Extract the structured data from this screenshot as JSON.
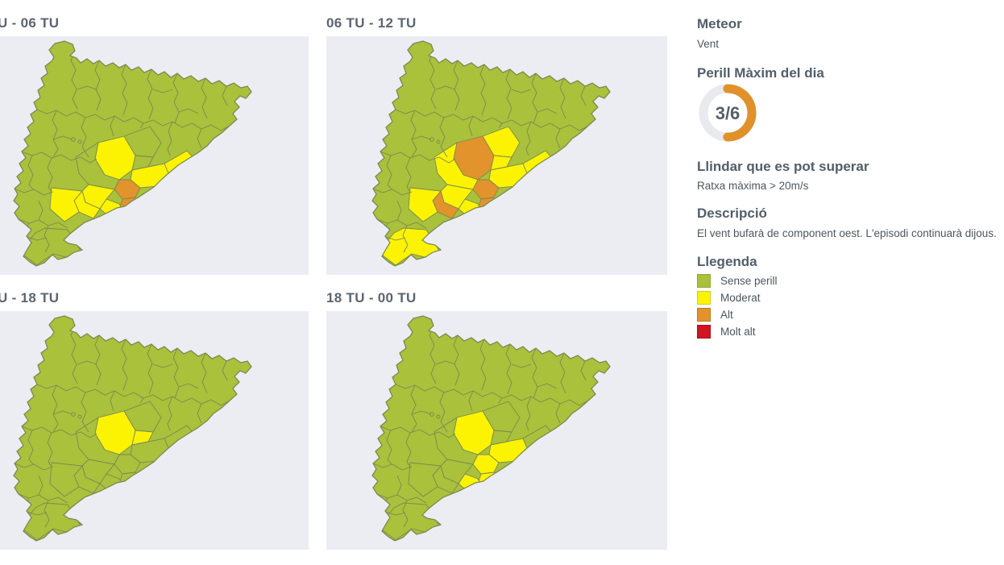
{
  "colors": {
    "sense_perill": "#a9c13b",
    "moderat": "#fcf303",
    "alt": "#e2932c",
    "molt_alt": "#d01523",
    "map_border": "#7c8852",
    "panel_bg": "#ebedf2",
    "gauge_track": "#e9eaed",
    "gauge_arc": "#e0912a"
  },
  "maps": {
    "panels": [
      {
        "title": "U - 06 TU",
        "moderat": [
          "bages",
          "vallesor",
          "maresme",
          "altpenedes",
          "garraf",
          "baixpenedes",
          "camp"
        ],
        "alt": [
          "vallesocc",
          "baixllobregat"
        ]
      },
      {
        "title": "06 TU - 12 TU",
        "moderat": [
          "osona",
          "moianes",
          "vallesor",
          "maresme",
          "anoia",
          "altpenedes",
          "garraf",
          "camp",
          "delta"
        ],
        "alt": [
          "bages",
          "vallesocc",
          "baixllobregat",
          "baixpenedes"
        ]
      },
      {
        "title": "U - 18 TU",
        "moderat": [
          "bages",
          "moianes"
        ],
        "alt": []
      },
      {
        "title": "18 TU - 00 TU",
        "moderat": [
          "bages",
          "vallesor",
          "vallesocc",
          "baixllobregat",
          "garraf"
        ],
        "alt": []
      }
    ]
  },
  "sidebar": {
    "meteor": {
      "heading": "Meteor",
      "value": "Vent"
    },
    "perill": {
      "heading": "Perill Màxim del dia",
      "value": "3/6",
      "level": 3,
      "max": 6
    },
    "llindar": {
      "heading": "Llindar que es pot superar",
      "value": "Ratxa màxima > 20m/s"
    },
    "descripcio": {
      "heading": "Descripció",
      "value": "El vent bufarà de component oest. L'episodi continuarà dijous."
    },
    "llegenda": {
      "heading": "Llegenda",
      "items": [
        {
          "label": "Sense perill",
          "color": "#a9c13b",
          "border": "#93a637"
        },
        {
          "label": "Moderat",
          "color": "#fcf303",
          "border": "#d8c91a"
        },
        {
          "label": "Alt",
          "color": "#e2932c",
          "border": "#c07b22"
        },
        {
          "label": "Molt alt",
          "color": "#d01523",
          "border": "#a90f1c"
        }
      ]
    }
  }
}
